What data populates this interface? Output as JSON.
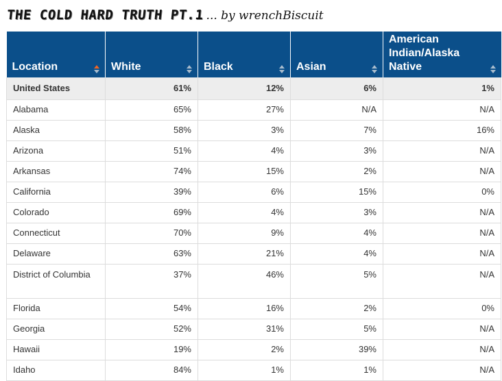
{
  "title": {
    "main": "THE COLD HARD TRUTH PT.1",
    "by": "... by wrenchBiscuit"
  },
  "table": {
    "headers": [
      "Location",
      "White",
      "Black",
      "Asian",
      "American Indian/Alaska Native"
    ],
    "rows": [
      [
        "United States",
        "61%",
        "12%",
        "6%",
        "1%"
      ],
      [
        "Alabama",
        "65%",
        "27%",
        "N/A",
        "N/A"
      ],
      [
        "Alaska",
        "58%",
        "3%",
        "7%",
        "16%"
      ],
      [
        "Arizona",
        "51%",
        "4%",
        "3%",
        "N/A"
      ],
      [
        "Arkansas",
        "74%",
        "15%",
        "2%",
        "N/A"
      ],
      [
        "California",
        "39%",
        "6%",
        "15%",
        "0%"
      ],
      [
        "Colorado",
        "69%",
        "4%",
        "3%",
        "N/A"
      ],
      [
        "Connecticut",
        "70%",
        "9%",
        "4%",
        "N/A"
      ],
      [
        "Delaware",
        "63%",
        "21%",
        "4%",
        "N/A"
      ],
      [
        "District of Columbia",
        "37%",
        "46%",
        "5%",
        "N/A"
      ],
      [
        "Florida",
        "54%",
        "16%",
        "2%",
        "0%"
      ],
      [
        "Georgia",
        "52%",
        "31%",
        "5%",
        "N/A"
      ],
      [
        "Hawaii",
        "19%",
        "2%",
        "39%",
        "N/A"
      ],
      [
        "Idaho",
        "84%",
        "1%",
        "1%",
        "N/A"
      ]
    ]
  },
  "colors": {
    "header_bg": "#0b4f8a",
    "active_sort": "#f26522",
    "total_row_bg": "#ededed"
  }
}
